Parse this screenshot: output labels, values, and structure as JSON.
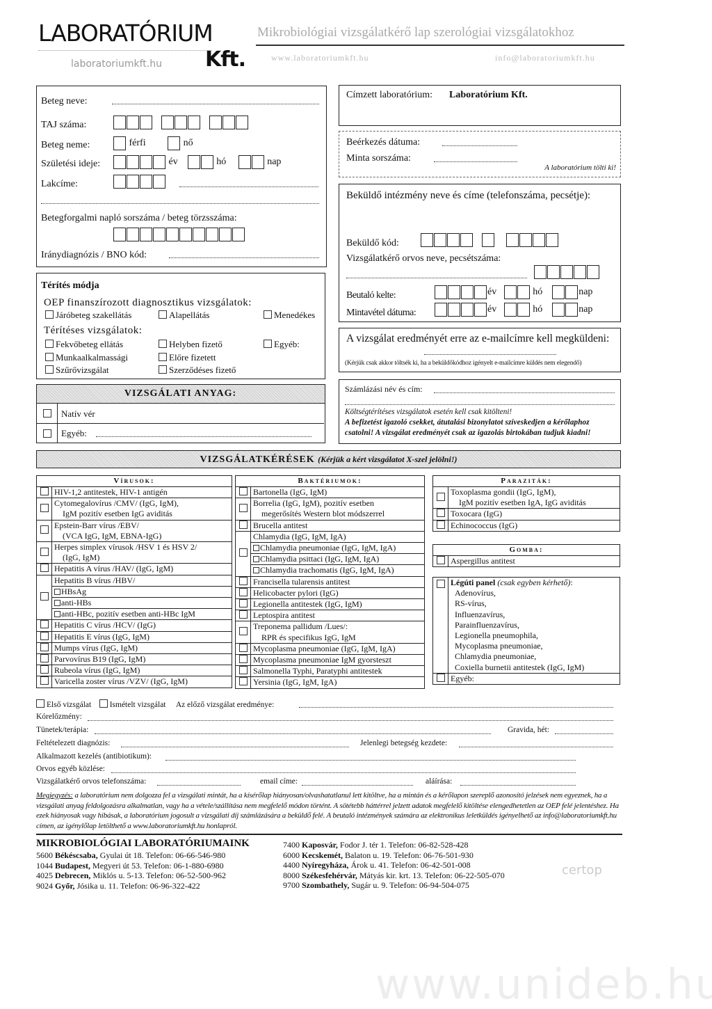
{
  "header": {
    "logo_main": "LABORATÓRIUM",
    "logo_kft": "Kft.",
    "logo_url": "laboratoriumkft.hu",
    "title": "Mikrobiológiai vizsgálatkérő lap szerológiai vizsgálatokhoz",
    "web": "www.laboratoriumkft.hu",
    "email": "info@laboratoriumkft.hu"
  },
  "patient": {
    "name": "Beteg neve:",
    "taj": "TAJ száma:",
    "sex": "Beteg neme:",
    "male": "férfi",
    "female": "nő",
    "birth": "Születési ideje:",
    "year": "év",
    "month": "hó",
    "day": "nap",
    "address": "Lakcíme:",
    "log": "Betegforgalmi napló sorszáma / beteg törzsszáma:",
    "diag": "Iránydiagnózis / BNO kód:"
  },
  "recipient": {
    "label": "Címzett laboratórium:",
    "value": "Laboratórium Kft."
  },
  "arrival": {
    "date": "Beérkezés dátuma:",
    "serial": "Minta sorszáma:",
    "note": "A laboratórium tölti ki!"
  },
  "sender": {
    "title": "Beküldő intézmény neve és címe (telefonszáma, pecsétje):",
    "code": "Beküldő kód:",
    "doctor": "Vizsgálatkérő orvos neve, pecsétszáma:",
    "referral": "Beutaló kelte:",
    "sampling": "Mintavétel dátuma:",
    "year": "év",
    "month": "hó",
    "day": "nap"
  },
  "payment": {
    "title": "Térítés módja",
    "oep": "OEP finanszírozott diagnosztikus vizsgálatok:",
    "oep_opts": [
      "Járóbeteg szakellátás",
      "Alapellátás",
      "Menedékes"
    ],
    "paid": "Térítéses vizsgálatok:",
    "paid_opts": [
      "Fekvőbeteg ellátás",
      "Helyben fizető",
      "Egyéb:",
      "Munkaalkalmassági",
      "Előre fizetett",
      "Szűrővizsgálat",
      "Szerződéses fizető"
    ]
  },
  "email_box": {
    "title": "A vizsgálat eredményét erre az e-mailcímre kell megküldeni:",
    "note": "(Kérjük csak akkor töltsék ki, ha a beküldőkódhoz igényelt e-mailcímre küldés nem elegendő)"
  },
  "billing": {
    "label": "Számlázási név és cím:",
    "note1": "Költségtérítéses vizsgálatok esetén kell csak kitölteni!",
    "note2": "A befizetést igazoló csekket, átutalási bizonylatot szíveskedjen a kérőlaphoz csatolni! A vizsgálat eredményét csak az igazolás birtokában tudjuk kiadni!"
  },
  "material": {
    "title": "VIZSGÁLATI ANYAG:",
    "opts": [
      "Natív vér",
      "Egyéb:"
    ]
  },
  "requests": {
    "title": "VIZSGÁLATKÉRÉSEK",
    "subtitle": "(Kérjük a kért vizsgálatot X-szel jelölni!)"
  },
  "viruses": {
    "title": "Vírusok:",
    "items": [
      [
        "HIV-1,2 antitestek, HIV-1 antigén"
      ],
      [
        "Cytomegalovírus /CMV/ (IgG, IgM),",
        "  IgM pozitív esetben IgG aviditás"
      ],
      [
        "Epstein-Barr vírus /EBV/",
        "  (VCA IgG, IgM, EBNA-IgG)"
      ],
      [
        "Herpes simplex vírusok /HSV 1 és HSV 2/",
        "  (IgG, IgM)"
      ],
      [
        "Hepatitis A vírus /HAV/ (IgG, IgM)"
      ],
      [
        "Hepatitis B vírus /HBV/"
      ],
      [
        "Hepatitis C vírus /HCV/ (IgG)"
      ],
      [
        "Hepatitis E vírus (IgG, IgM)"
      ],
      [
        "Mumps vírus (IgG, IgM)"
      ],
      [
        "Parvovírus B19 (IgG, IgM)"
      ],
      [
        "Rubeola vírus (IgG, IgM)"
      ],
      [
        "Varicella zoster vírus /VZV/ (IgG, IgM)"
      ]
    ],
    "hbv_sub": [
      "HBsAg",
      "anti-HBs",
      "anti-HBc, pozitív esetben anti-HBc IgM"
    ]
  },
  "bacteria": {
    "title": "Baktériumok:",
    "items": [
      [
        "Bartonella (IgG, IgM)"
      ],
      [
        "Borrelia (IgG, IgM), pozitív esetben",
        "  megerősítés Western blot módszerrel"
      ],
      [
        "Brucella antitest"
      ],
      [
        "Chlamydia (IgG, IgM, IgA)"
      ],
      [
        "Francisella tularensis antitest"
      ],
      [
        "Helicobacter pylori (IgG)"
      ],
      [
        "Legionella antitestek (IgG, IgM)"
      ],
      [
        "Leptospira antitest"
      ],
      [
        "Treponema pallidum /Lues/:",
        "  RPR és specifikus IgG, IgM"
      ],
      [
        "Mycoplasma pneumoniae (IgG, IgM, IgA)"
      ],
      [
        "Mycoplasma pneumoniae IgM gyorsteszt"
      ],
      [
        "Salmonella Typhi, Paratyphi antitestek"
      ],
      [
        "Yersinia (IgG, IgM, IgA)"
      ]
    ],
    "chlamydia_sub": [
      "Chlamydia pneumoniae (IgG, IgM, IgA)",
      "Chlamydia psittaci (IgG, IgM, IgA)",
      "Chlamydia trachomatis (IgG, IgM, IgA)"
    ]
  },
  "parasites": {
    "title": "Paraziták:",
    "items": [
      [
        "Toxoplasma gondii (IgG, IgM),",
        "  IgM pozitív esetben IgA, IgG aviditás"
      ],
      [
        "Toxocara (IgG)"
      ],
      [
        "Echinococcus (IgG)"
      ]
    ]
  },
  "fungi": {
    "title": "Gomba:",
    "items": [
      [
        "Aspergillus antitest"
      ]
    ]
  },
  "respiratory": {
    "title": "Légúti panel",
    "note": "(csak egyben kérhető)",
    "items": [
      "Adenovírus,",
      "RS-vírus,",
      "Influenzavírus,",
      "Parainfluenzavírus,",
      "Legionella pneumophila,",
      "Mycoplasma pneumoniae,",
      "Chlamydia pneumoniae,",
      "Coxiella burnetii antitestek (IgG, IgM)"
    ],
    "other": "Egyéb:"
  },
  "clinical": {
    "first": "Első vizsgálat",
    "repeat": "Ismételt vizsgálat",
    "prev": "Az előző vizsgálat eredménye:",
    "history": "Kórelőzmény:",
    "symptoms": "Tünetek/terápia:",
    "gravida": "Gravida, hét:",
    "suspected": "Feltételezett diagnózis:",
    "onset": "Jelenlegi betegség kezdete:",
    "treatment": "Alkalmazott kezelés (antibiotikum):",
    "doctor_note": "Orvos egyéb közlése:",
    "phone": "Vizsgálatkérő orvos telefonszáma:",
    "email": "email címe:",
    "signature": "aláírása:"
  },
  "notes": {
    "label": "Megjegyzés:",
    "text": "a laboratórium nem dolgozza fel a vizsgálati mintát, ha a kísérőlap hiányosan/olvashatatlanul lett kitöltve, ha a mintán és a kérőlapon szereplő azonosító jelzések nem egyeznek, ha a vizsgálati anyag feldolgozásra alkalmatlan, vagy ha a vétele/szállítása nem megfelelő módon történt. A sötétebb háttérrel jelzett adatok megfelelő kitöltése elengedhetetlen az OEP felé jelentéshez. Ha ezek hiányosak vagy hibásak, a laboratórium jogosult a vizsgálati díj számlázására a beküldő felé. A beutaló intézmények számára az elektronikus leletküldés igényelhető az info@laboratoriumkft.hu címen, az igénylőlap letölthető a www.laboratoriumkft.hu honlapról."
  },
  "labs": {
    "title": "MIKROBIOLÓGIAI LABORATÓRIUMAINK",
    "left": [
      [
        "5600",
        "Békéscsaba,",
        "Gyulai út 18. Telefon: 06-66-546-980"
      ],
      [
        "1044",
        "Budapest,",
        "Megyeri út 53. Telefon: 06-1-880-6980"
      ],
      [
        "4025",
        "Debrecen,",
        "Miklós u. 5-13. Telefon: 06-52-500-962"
      ],
      [
        "9024",
        "Győr,",
        "Jósika u. 11. Telefon: 06-96-322-422"
      ]
    ],
    "right": [
      [
        "7400",
        "Kaposvár,",
        "Fodor J. tér 1. Telefon: 06-82-528-428"
      ],
      [
        "6000",
        "Kecskemét,",
        "Balaton u. 19. Telefon: 06-76-501-930"
      ],
      [
        "4400",
        "Nyíregyháza,",
        "Árok u. 41. Telefon: 06-42-501-008"
      ],
      [
        "8000",
        "Székesfehérvár,",
        "Mátyás kir. krt. 13. Telefon: 06-22-505-070"
      ],
      [
        "9700",
        "Szombathely,",
        "Sugár u. 9. Telefon: 06-94-504-075"
      ]
    ]
  },
  "cert_logo": "certop",
  "watermark": "www.unideb.hu"
}
